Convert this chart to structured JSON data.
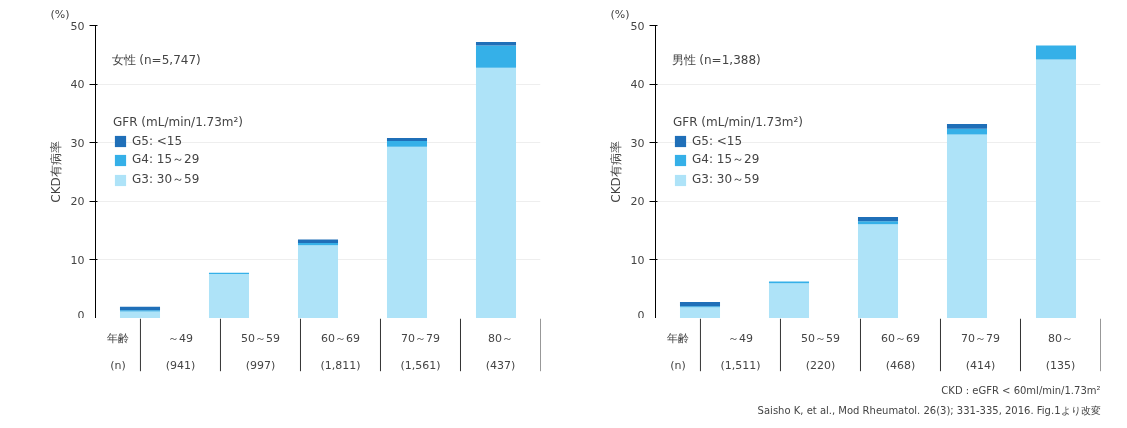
{
  "chart_data": [
    {
      "type": "bar",
      "stacked": true,
      "categories": [
        "～49",
        "50～59",
        "60～69",
        "70～79",
        "80～"
      ],
      "series": [
        {
          "name": "G3: 30～59",
          "color": "#aee3f8",
          "values": [
            1.2,
            7.6,
            12.5,
            29.3,
            42.8
          ]
        },
        {
          "name": "G4: 15～29",
          "color": "#35b0e8",
          "values": [
            0.2,
            0.2,
            0.4,
            1.0,
            3.8
          ]
        },
        {
          "name": "G5: <15",
          "color": "#1f6fb8",
          "values": [
            0.6,
            0,
            0.6,
            0.5,
            0.6
          ]
        }
      ],
      "ylim": [
        0,
        50
      ],
      "yticks": [
        0,
        10,
        20,
        30,
        40,
        50
      ],
      "grid": "y",
      "legend": "top left",
      "legend_title": "GFR (mL/min/1.73m²)",
      "ylabel": "CKD有病率",
      "annotations": [
        "(%)",
        "女性 (n=5,747)",
        "年齢",
        "(n)",
        "(941)",
        "(997)",
        "(1,811)",
        "(1,561)",
        "(437)"
      ]
    },
    {
      "type": "bar",
      "stacked": true,
      "categories": [
        "～49",
        "50～59",
        "60～69",
        "70～79",
        "80～"
      ],
      "series": [
        {
          "name": "G3: 30～59",
          "color": "#aee3f8",
          "values": [
            1.9,
            6.0,
            16.1,
            31.4,
            44.2
          ]
        },
        {
          "name": "G4: 15～29",
          "color": "#35b0e8",
          "values": [
            0.2,
            0.3,
            0.5,
            1.0,
            2.4
          ]
        },
        {
          "name": "G5: <15",
          "color": "#1f6fb8",
          "values": [
            0.7,
            0,
            0.7,
            0.8,
            0
          ]
        }
      ],
      "ylim": [
        0,
        50
      ],
      "yticks": [
        0,
        10,
        20,
        30,
        40,
        50
      ],
      "grid": "y",
      "legend": "top left",
      "legend_title": "GFR (mL/min/1.73m²)",
      "ylabel": "CKD有病率",
      "annotations": [
        "(%)",
        "男性 (n=1,388)",
        "年齢",
        "(n)",
        "(1,511)",
        "(220)",
        "(468)",
        "(414)",
        "(135)",
        "CKD : eGFR < 60ml/min/1.73m²",
        "Saisho K, et al., Mod Rheumatol. 26(3); 331-335, 2016. Fig.1より改変"
      ]
    }
  ]
}
